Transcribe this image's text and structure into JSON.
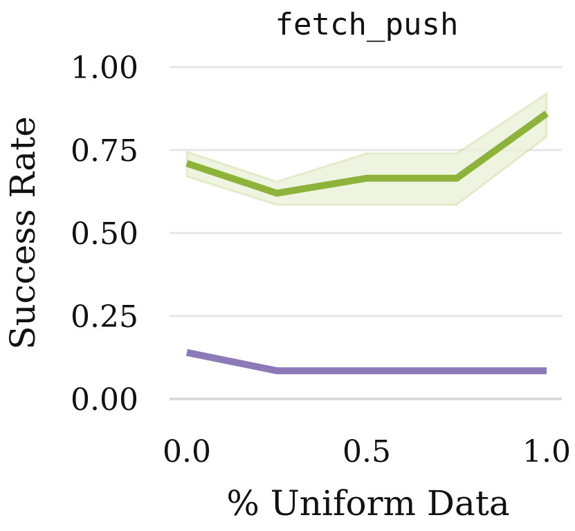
{
  "chart_data": {
    "type": "line",
    "title": "fetch_push",
    "xlabel": "% Uniform Data",
    "ylabel": "Success Rate",
    "xlim": [
      0.0,
      1.0
    ],
    "ylim": [
      0.0,
      1.0
    ],
    "x_ticks": [
      "0.0",
      "0.5",
      "1.0"
    ],
    "y_ticks": [
      "0.00",
      "0.25",
      "0.50",
      "0.75",
      "1.00"
    ],
    "grid": "horizontal",
    "x": [
      0.0,
      0.25,
      0.5,
      0.75,
      1.0
    ],
    "series": [
      {
        "color": "#8db33a",
        "band_color": "#e9f0d6",
        "values": [
          0.71,
          0.62,
          0.665,
          0.665,
          0.86
        ],
        "lower": [
          0.67,
          0.585,
          0.585,
          0.585,
          0.79
        ],
        "upper": [
          0.745,
          0.655,
          0.74,
          0.74,
          0.92
        ]
      },
      {
        "color": "#8c7ab8",
        "values": [
          0.14,
          0.085,
          0.085,
          0.085,
          0.085
        ]
      }
    ]
  }
}
